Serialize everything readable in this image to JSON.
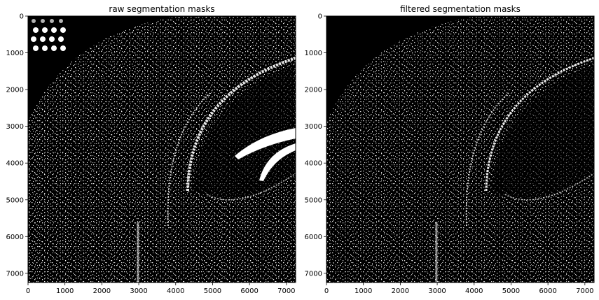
{
  "chart_data": [
    {
      "type": "heatmap",
      "title": "raw segmentation masks",
      "xlabel": "",
      "ylabel": "",
      "xlim": [
        0,
        7250
      ],
      "ylim": [
        7250,
        0
      ],
      "xticks": [
        0,
        1000,
        2000,
        3000,
        4000,
        5000,
        6000,
        7000
      ],
      "yticks": [
        0,
        1000,
        2000,
        3000,
        4000,
        5000,
        6000,
        7000
      ],
      "colormap": "gray",
      "background": "#000000",
      "foreground": "#ffffff"
    },
    {
      "type": "heatmap",
      "title": "filtered segmentation masks",
      "xlabel": "",
      "ylabel": "",
      "xlim": [
        0,
        7250
      ],
      "ylim": [
        7250,
        0
      ],
      "xticks": [
        0,
        1000,
        2000,
        3000,
        4000,
        5000,
        6000,
        7000
      ],
      "yticks": [
        0,
        1000,
        2000,
        3000,
        4000,
        5000,
        6000,
        7000
      ],
      "colormap": "gray",
      "background": "#000000",
      "foreground": "#ffffff"
    }
  ]
}
